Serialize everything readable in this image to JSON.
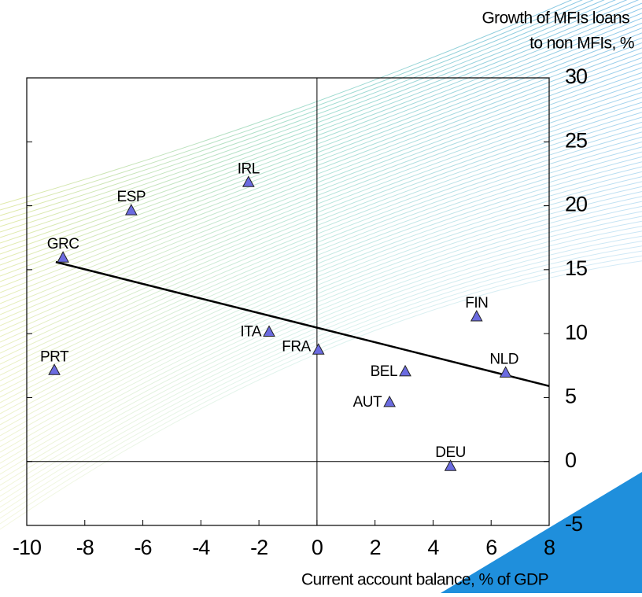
{
  "chart_data": {
    "type": "scatter",
    "y_title": [
      "Growth of MFIs loans",
      "to non MFIs, %"
    ],
    "x_title": "Current account balance, % of GDP",
    "series": [
      {
        "color": "#6b6be0",
        "labels": [
          "GRC",
          "ESP",
          "IRL",
          "PRT",
          "ITA",
          "FRA",
          "BEL",
          "AUT",
          "FIN",
          "NLD",
          "DEU"
        ],
        "x": [
          -8.75,
          -6.4,
          -2.36,
          -9.05,
          -1.65,
          0.05,
          3.04,
          2.5,
          5.5,
          6.5,
          4.6
        ],
        "values": [
          15.9,
          19.6,
          21.8,
          7.1,
          10.1,
          8.7,
          7.0,
          4.6,
          11.3,
          6.9,
          -0.4
        ]
      }
    ],
    "trendline": {
      "x": [
        -9,
        8
      ],
      "y": [
        15.6,
        5.9
      ]
    },
    "xlim": [
      -10,
      8
    ],
    "xticks": [
      -10,
      -8,
      -6,
      -4,
      -2,
      0,
      2,
      4,
      6,
      8
    ],
    "ylim": [
      -5,
      30
    ],
    "yticks": [
      -5,
      0,
      5,
      10,
      15,
      20,
      25,
      30
    ]
  }
}
